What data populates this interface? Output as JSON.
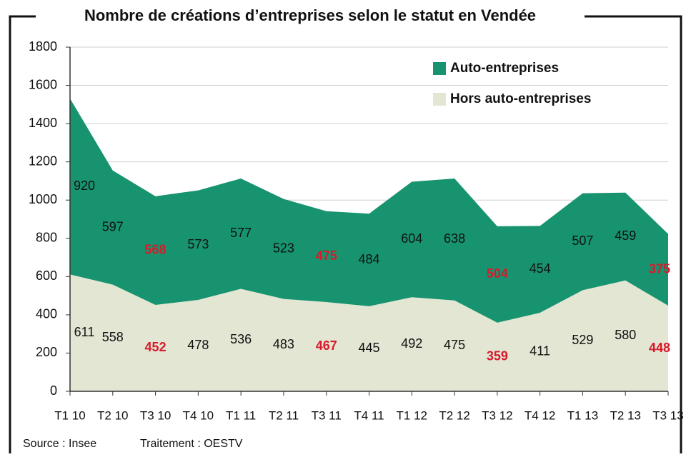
{
  "chart_data": {
    "type": "stacked_area",
    "title": "Nombre de créations d’entreprises selon le statut en Vendée",
    "source": "Source : Insee",
    "credit": "Traitement : OESTV",
    "categories": [
      "T1 10",
      "T2 10",
      "T3 10",
      "T4 10",
      "T1 11",
      "T2 11",
      "T3 11",
      "T4 11",
      "T1 12",
      "T2 12",
      "T3 12",
      "T4 12",
      "T1 13",
      "T2 13",
      "T3 13"
    ],
    "series": [
      {
        "name": "Hors auto-entreprises",
        "color": "#e2e6d3",
        "values": [
          611,
          558,
          452,
          478,
          536,
          483,
          467,
          445,
          492,
          475,
          359,
          411,
          529,
          580,
          448
        ]
      },
      {
        "name": "Auto-entreprises",
        "color": "#17936f",
        "values": [
          920,
          597,
          568,
          573,
          577,
          523,
          475,
          484,
          604,
          638,
          504,
          454,
          507,
          459,
          375
        ]
      }
    ],
    "highlight": [
      2,
      6,
      10,
      14
    ],
    "highlight_color": "#d81b2c",
    "ylim": [
      0,
      1800
    ],
    "yticks": [
      0,
      200,
      400,
      600,
      800,
      1000,
      1200,
      1400,
      1600,
      1800
    ],
    "grid": true,
    "legend": "top-right"
  }
}
